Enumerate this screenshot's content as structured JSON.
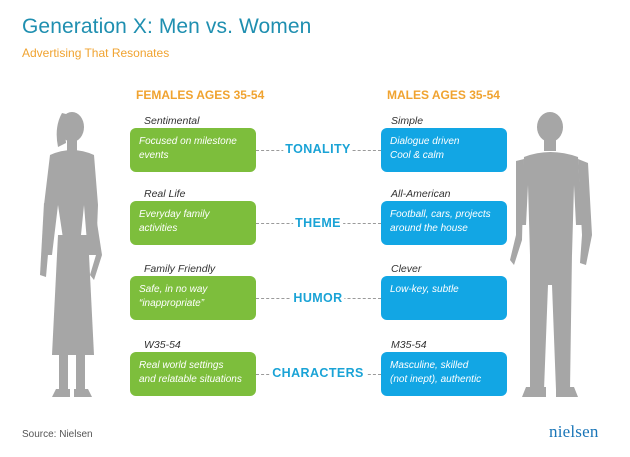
{
  "header": {
    "title": "Generation X: Men vs. Women",
    "subtitle": "Advertising That Resonates"
  },
  "columns": {
    "female": "FEMALES AGES 35-54",
    "male": "MALES AGES 35-54"
  },
  "rows": [
    {
      "category": "TONALITY",
      "female": {
        "label": "Sentimental",
        "text": "Focused on milestone\nevents"
      },
      "male": {
        "label": "Simple",
        "text": "Dialogue driven\nCool & calm"
      }
    },
    {
      "category": "THEME",
      "female": {
        "label": "Real Life",
        "text": "Everyday family\nactivities"
      },
      "male": {
        "label": "All-American",
        "text": "Football, cars, projects\naround the house"
      }
    },
    {
      "category": "HUMOR",
      "female": {
        "label": "Family Friendly",
        "text": "Safe, in no way\n“inappropriate”"
      },
      "male": {
        "label": "Clever",
        "text": "Low-key, subtle"
      }
    },
    {
      "category": "CHARACTERS",
      "female": {
        "label": "W35-54",
        "text": "Real world settings\nand relatable situations"
      },
      "male": {
        "label": "M35-54",
        "text": "Masculine, skilled\n(not inept), authentic"
      }
    }
  ],
  "footer": {
    "source": "Source: Nielsen",
    "logo": "nielsen"
  },
  "colors": {
    "title": "#1f8fb0",
    "accent": "#f0a330",
    "female_box": "#7dbe3c",
    "male_box": "#12a6e4",
    "category": "#1aa3d6",
    "silhouette": "#a6a6a6"
  }
}
